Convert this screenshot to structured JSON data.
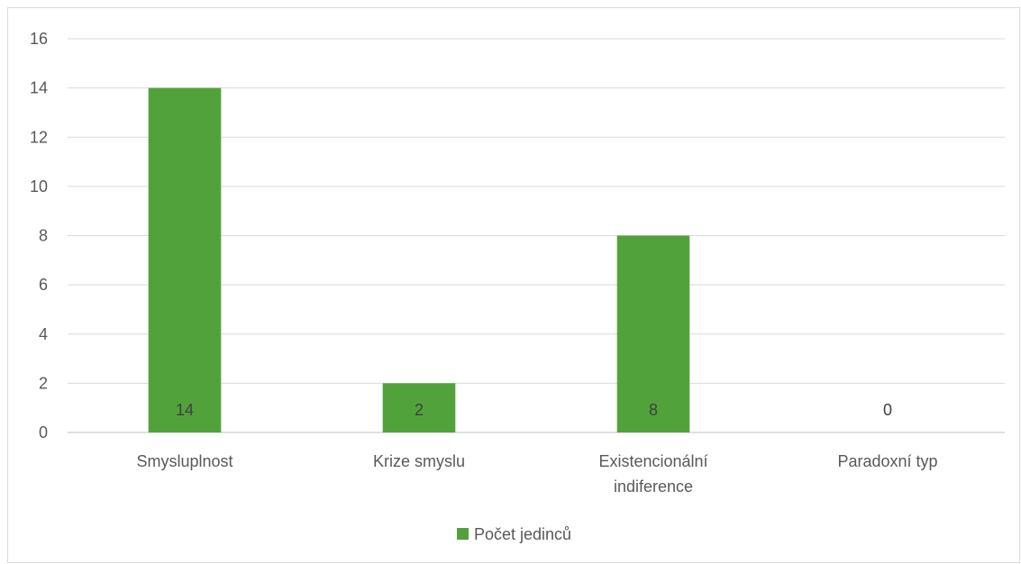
{
  "chart_data": {
    "type": "bar",
    "categories": [
      [
        "Smysluplnost"
      ],
      [
        "Krize smyslu"
      ],
      [
        "Existencionální",
        "indiference"
      ],
      [
        "Paradoxní typ"
      ]
    ],
    "series": [
      {
        "name": "Počet jedinců",
        "values": [
          14,
          2,
          8,
          0
        ],
        "color": "#52a23c"
      }
    ],
    "ylim": [
      0,
      16
    ],
    "yticks": [
      0,
      2,
      4,
      6,
      8,
      10,
      12,
      14,
      16
    ],
    "grid": true,
    "legend_position": "bottom",
    "data_labels": true
  }
}
